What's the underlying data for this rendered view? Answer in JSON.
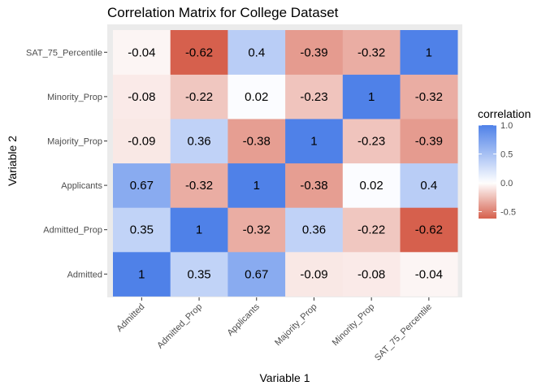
{
  "chart_data": {
    "type": "heatmap",
    "title": "Correlation Matrix for College Dataset",
    "xlabel": "Variable 1",
    "ylabel": "Variable 2",
    "x_categories": [
      "Admitted",
      "Admitted_Prop",
      "Applicants",
      "Majority_Prop",
      "Minority_Prop",
      "SAT_75_Percentile"
    ],
    "y_categories": [
      "Admitted",
      "Admitted_Prop",
      "Applicants",
      "Majority_Prop",
      "Minority_Prop",
      "SAT_75_Percentile"
    ],
    "values": [
      [
        1,
        0.35,
        0.67,
        -0.09,
        -0.08,
        -0.04
      ],
      [
        0.35,
        1,
        -0.32,
        0.36,
        -0.22,
        -0.62
      ],
      [
        0.67,
        -0.32,
        1,
        -0.38,
        0.02,
        0.4
      ],
      [
        -0.09,
        0.36,
        -0.38,
        1,
        -0.23,
        -0.39
      ],
      [
        -0.08,
        -0.22,
        0.02,
        -0.23,
        1,
        -0.32
      ],
      [
        -0.04,
        -0.62,
        0.4,
        -0.39,
        -0.32,
        1
      ]
    ],
    "value_labels": [
      [
        "1",
        "0.35",
        "0.67",
        "-0.09",
        "-0.08",
        "-0.04"
      ],
      [
        "0.35",
        "1",
        "-0.32",
        "0.36",
        "-0.22",
        "-0.62"
      ],
      [
        "0.67",
        "-0.32",
        "1",
        "-0.38",
        "0.02",
        "0.4"
      ],
      [
        "-0.09",
        "0.36",
        "-0.38",
        "1",
        "-0.23",
        "-0.39"
      ],
      [
        "-0.08",
        "-0.22",
        "0.02",
        "-0.23",
        "1",
        "-0.32"
      ],
      [
        "-0.04",
        "-0.62",
        "0.4",
        "-0.39",
        "-0.32",
        "1"
      ]
    ],
    "legend": {
      "title": "correlation",
      "ticks": [
        1.0,
        0.5,
        0.0,
        -0.5
      ],
      "tick_labels": [
        "1.0",
        "0.5",
        "0.0",
        "-0.5"
      ],
      "range": [
        -0.62,
        1.0
      ],
      "placement": "right"
    },
    "colors": {
      "low": "#d6604d",
      "mid": "#ffffff",
      "high": "#4f81e8",
      "panel_background": "#ebebeb"
    }
  }
}
